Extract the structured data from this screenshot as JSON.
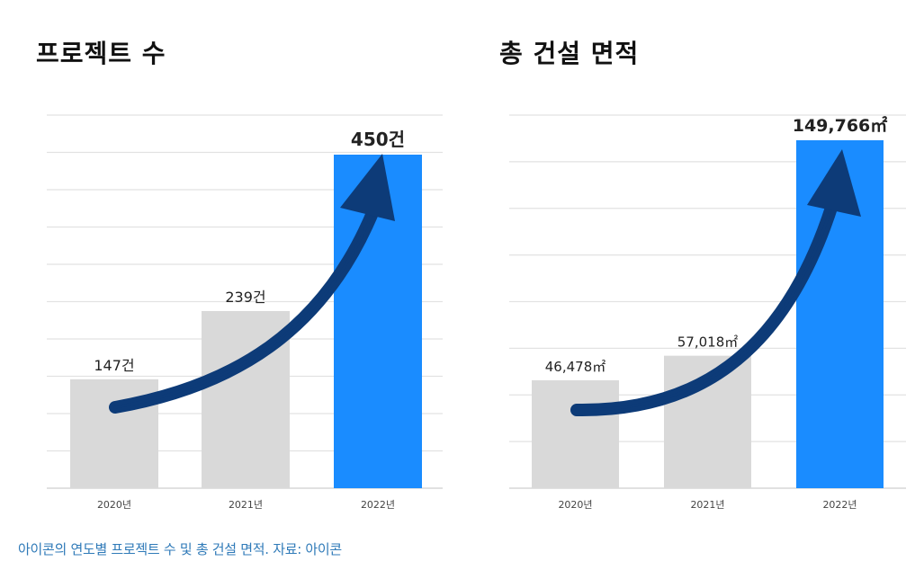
{
  "colors": {
    "bar_default": "#d9d9d9",
    "bar_highlight": "#1a8cff",
    "arrow": "#0d3b78",
    "grid": "#e2e2e2",
    "caption": "#2f7ab8"
  },
  "chart_data": [
    {
      "type": "bar",
      "title": "프로젝트 수",
      "categories": [
        "2020년",
        "2021년",
        "2022년"
      ],
      "values": [
        147,
        239,
        450
      ],
      "value_labels": [
        "147건",
        "239건",
        "450건"
      ],
      "highlight_index": 2,
      "ylim": [
        0,
        450
      ],
      "grid": true,
      "xlabel": "",
      "ylabel": "",
      "annotation": "trend-arrow"
    },
    {
      "type": "bar",
      "title": "총 건설 면적",
      "categories": [
        "2020년",
        "2021년",
        "2022년"
      ],
      "values": [
        46478,
        57018,
        149766
      ],
      "value_labels": [
        "46,478㎡",
        "57,018㎡",
        "149,766㎡"
      ],
      "highlight_index": 2,
      "ylim": [
        0,
        149766
      ],
      "grid": true,
      "xlabel": "",
      "ylabel": "",
      "annotation": "trend-arrow"
    }
  ],
  "caption": "아이콘의 연도별 프로젝트 수 및 총 건설 면적. 자료: 아이콘"
}
